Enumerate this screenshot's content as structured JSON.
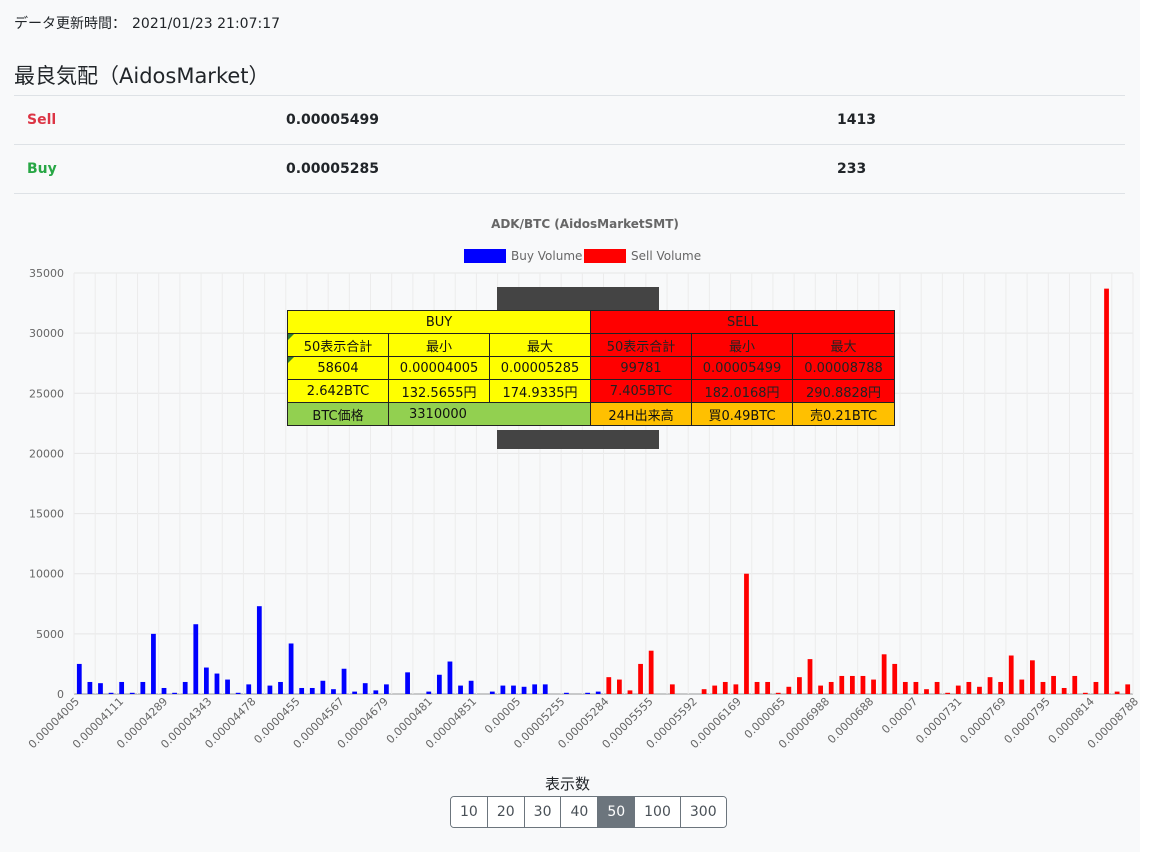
{
  "header": {
    "updated_label": "データ更新時間：",
    "updated_time": "2021/01/23 21:07:17",
    "title": "最良気配（AidosMarket）"
  },
  "best_quotes": {
    "sell": {
      "label": "Sell",
      "price": "0.00005499",
      "volume": "1413"
    },
    "buy": {
      "label": "Buy",
      "price": "0.00005285",
      "volume": "233"
    }
  },
  "summary_table": {
    "buy_header": "BUY",
    "sell_header": "SELL",
    "col_total": "50表示合計",
    "col_min": "最小",
    "col_max": "最大",
    "buy_total": "58604",
    "buy_min": "0.00004005",
    "buy_max": "0.00005285",
    "sell_total": "99781",
    "sell_min": "0.00005499",
    "sell_max": "0.00008788",
    "buy_total_btc": "2.642BTC",
    "buy_min_jpy": "132.5655円",
    "buy_max_jpy": "174.9335円",
    "sell_total_btc": "7.405BTC",
    "sell_min_jpy": "182.0168円",
    "sell_max_jpy": "290.8828円",
    "btc_price_label": "BTC価格",
    "btc_price": "3310000",
    "vol24_label": "24H出来高",
    "vol24_buy": "買0.49BTC",
    "vol24_sell": "売0.21BTC"
  },
  "display_count": {
    "label": "表示数",
    "options": [
      "10",
      "20",
      "30",
      "40",
      "50",
      "100",
      "300"
    ],
    "selected": "50"
  },
  "colors": {
    "buy": "#0000ff",
    "sell": "#ff0000"
  },
  "chart_data": {
    "type": "bar",
    "title": "ADK/BTC (AidosMarketSMT)",
    "legend_position": "top",
    "grid": true,
    "ylim": [
      0,
      35000
    ],
    "yticks": [
      0,
      5000,
      10000,
      15000,
      20000,
      25000,
      30000,
      35000
    ],
    "x_tick_labels": [
      "0.00004005",
      "0.00004111",
      "0.00004289",
      "0.00004343",
      "0.00004478",
      "0.0000455",
      "0.00004567",
      "0.00004679",
      "0.0000481",
      "0.00004851",
      "0.00005",
      "0.00005255",
      "0.00005284",
      "0.00005555",
      "0.00005592",
      "0.00006169",
      "0.000065",
      "0.00006988",
      "0.0000688",
      "0.00007",
      "0.0000731",
      "0.0000769",
      "0.0000795",
      "0.0000814",
      "0.00008788"
    ],
    "series": [
      {
        "name": "Buy Volume",
        "values": [
          2500,
          1000,
          900,
          100,
          1000,
          100,
          1000,
          5000,
          500,
          100,
          1000,
          5800,
          2200,
          1700,
          1200,
          100,
          800,
          7300,
          700,
          1000,
          4200,
          500,
          500,
          1100,
          400,
          2100,
          200,
          900,
          300,
          800,
          0,
          1800,
          0,
          200,
          1600,
          2700,
          700,
          1100,
          0,
          200,
          700,
          700,
          600,
          800,
          800,
          0,
          100,
          0,
          100,
          200
        ]
      },
      {
        "name": "Sell Volume",
        "values": [
          1400,
          1200,
          300,
          2500,
          3600,
          0,
          800,
          0,
          0,
          400,
          700,
          1000,
          800,
          10000,
          1000,
          1000,
          100,
          600,
          1400,
          2900,
          700,
          1000,
          1500,
          1500,
          1500,
          1200,
          3300,
          2500,
          1000,
          1000,
          400,
          1000,
          100,
          700,
          1000,
          600,
          1400,
          1000,
          3200,
          1200,
          2800,
          1000,
          1500,
          500,
          1500,
          100,
          1000,
          33700,
          200,
          800
        ]
      }
    ]
  }
}
